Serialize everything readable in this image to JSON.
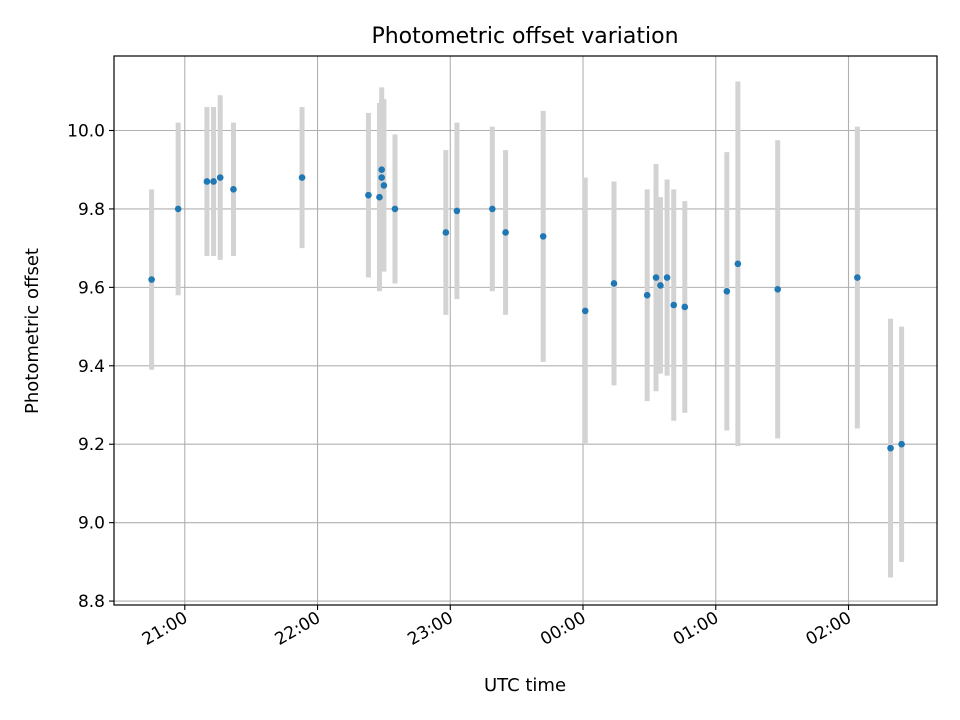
{
  "chart_data": {
    "type": "scatter",
    "title": "Photometric offset variation",
    "xlabel": "UTC time",
    "ylabel": "Photometric offset",
    "x_axis_type": "time",
    "xlim": [
      "20:28",
      "02:40"
    ],
    "xticks": [
      "21:00",
      "22:00",
      "23:00",
      "00:00",
      "01:00",
      "02:00"
    ],
    "ylim": [
      8.79,
      10.19
    ],
    "yticks": [
      8.8,
      9.0,
      9.2,
      9.4,
      9.6,
      9.8,
      10.0
    ],
    "grid": true,
    "colors": {
      "points": "#1f77b4",
      "errorbars": "#d3d3d3",
      "grid": "#b0b0b0"
    },
    "points": [
      {
        "t": "20:45",
        "y": 9.62,
        "err": 0.23
      },
      {
        "t": "20:57",
        "y": 9.8,
        "err": 0.22
      },
      {
        "t": "21:10",
        "y": 9.87,
        "err": 0.19
      },
      {
        "t": "21:13",
        "y": 9.87,
        "err": 0.19
      },
      {
        "t": "21:16",
        "y": 9.88,
        "err": 0.21
      },
      {
        "t": "21:22",
        "y": 9.85,
        "err": 0.17
      },
      {
        "t": "21:53",
        "y": 9.88,
        "err": 0.18
      },
      {
        "t": "22:23",
        "y": 9.835,
        "err": 0.21
      },
      {
        "t": "22:28",
        "y": 9.83,
        "err": 0.24
      },
      {
        "t": "22:29",
        "y": 9.9,
        "err": 0.21
      },
      {
        "t": "22:29",
        "y": 9.88,
        "err": 0.2
      },
      {
        "t": "22:30",
        "y": 9.86,
        "err": 0.22
      },
      {
        "t": "22:35",
        "y": 9.8,
        "err": 0.19
      },
      {
        "t": "22:58",
        "y": 9.74,
        "err": 0.21
      },
      {
        "t": "23:03",
        "y": 9.795,
        "err": 0.225
      },
      {
        "t": "23:19",
        "y": 9.8,
        "err": 0.21
      },
      {
        "t": "23:25",
        "y": 9.74,
        "err": 0.21
      },
      {
        "t": "23:42",
        "y": 9.73,
        "err": 0.32
      },
      {
        "t": "00:01",
        "y": 9.54,
        "err": 0.34
      },
      {
        "t": "00:14",
        "y": 9.61,
        "err": 0.26
      },
      {
        "t": "00:29",
        "y": 9.58,
        "err": 0.27
      },
      {
        "t": "00:33",
        "y": 9.625,
        "err": 0.29
      },
      {
        "t": "00:35",
        "y": 9.605,
        "err": 0.225
      },
      {
        "t": "00:38",
        "y": 9.625,
        "err": 0.25
      },
      {
        "t": "00:41",
        "y": 9.555,
        "err": 0.295
      },
      {
        "t": "00:46",
        "y": 9.55,
        "err": 0.27
      },
      {
        "t": "01:05",
        "y": 9.59,
        "err": 0.355
      },
      {
        "t": "01:10",
        "y": 9.66,
        "err": 0.465
      },
      {
        "t": "01:28",
        "y": 9.595,
        "err": 0.38
      },
      {
        "t": "02:04",
        "y": 9.625,
        "err": 0.385
      },
      {
        "t": "02:19",
        "y": 9.19,
        "err": 0.33
      },
      {
        "t": "02:24",
        "y": 9.2,
        "err": 0.3
      }
    ]
  }
}
